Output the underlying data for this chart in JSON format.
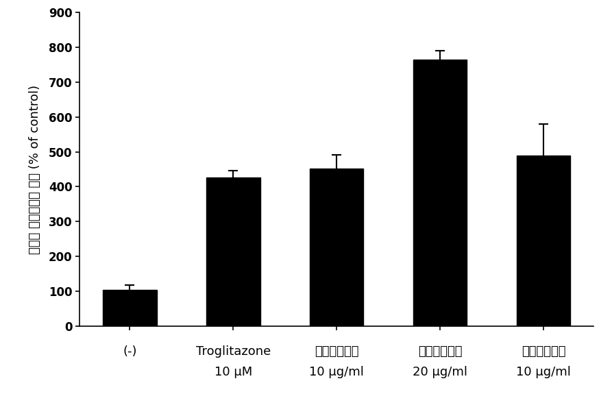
{
  "categories_line1": [
    "(-)",
    "Troglitazone",
    "에탄올추출물",
    "에탄올추출물",
    "메탄올추출물"
  ],
  "categories_line2": [
    "",
    "10 μM",
    "10 μg/ml",
    "20 μg/ml",
    "10 μg/ml"
  ],
  "values": [
    103,
    427,
    452,
    765,
    490
  ],
  "errors": [
    15,
    20,
    40,
    25,
    90
  ],
  "bar_color": "#000000",
  "ylabel_korean": "상대적 누시퍼아제 활성",
  "ylabel_english": "(% of control)",
  "ylim": [
    0,
    900
  ],
  "yticks": [
    0,
    100,
    200,
    300,
    400,
    500,
    600,
    700,
    800,
    900
  ],
  "bar_width": 0.52,
  "background_color": "#ffffff",
  "ylabel_fontsize": 13,
  "tick_fontsize": 12,
  "xtick_fontsize": 13,
  "capsize": 5,
  "error_linewidth": 1.5,
  "error_color": "#000000"
}
